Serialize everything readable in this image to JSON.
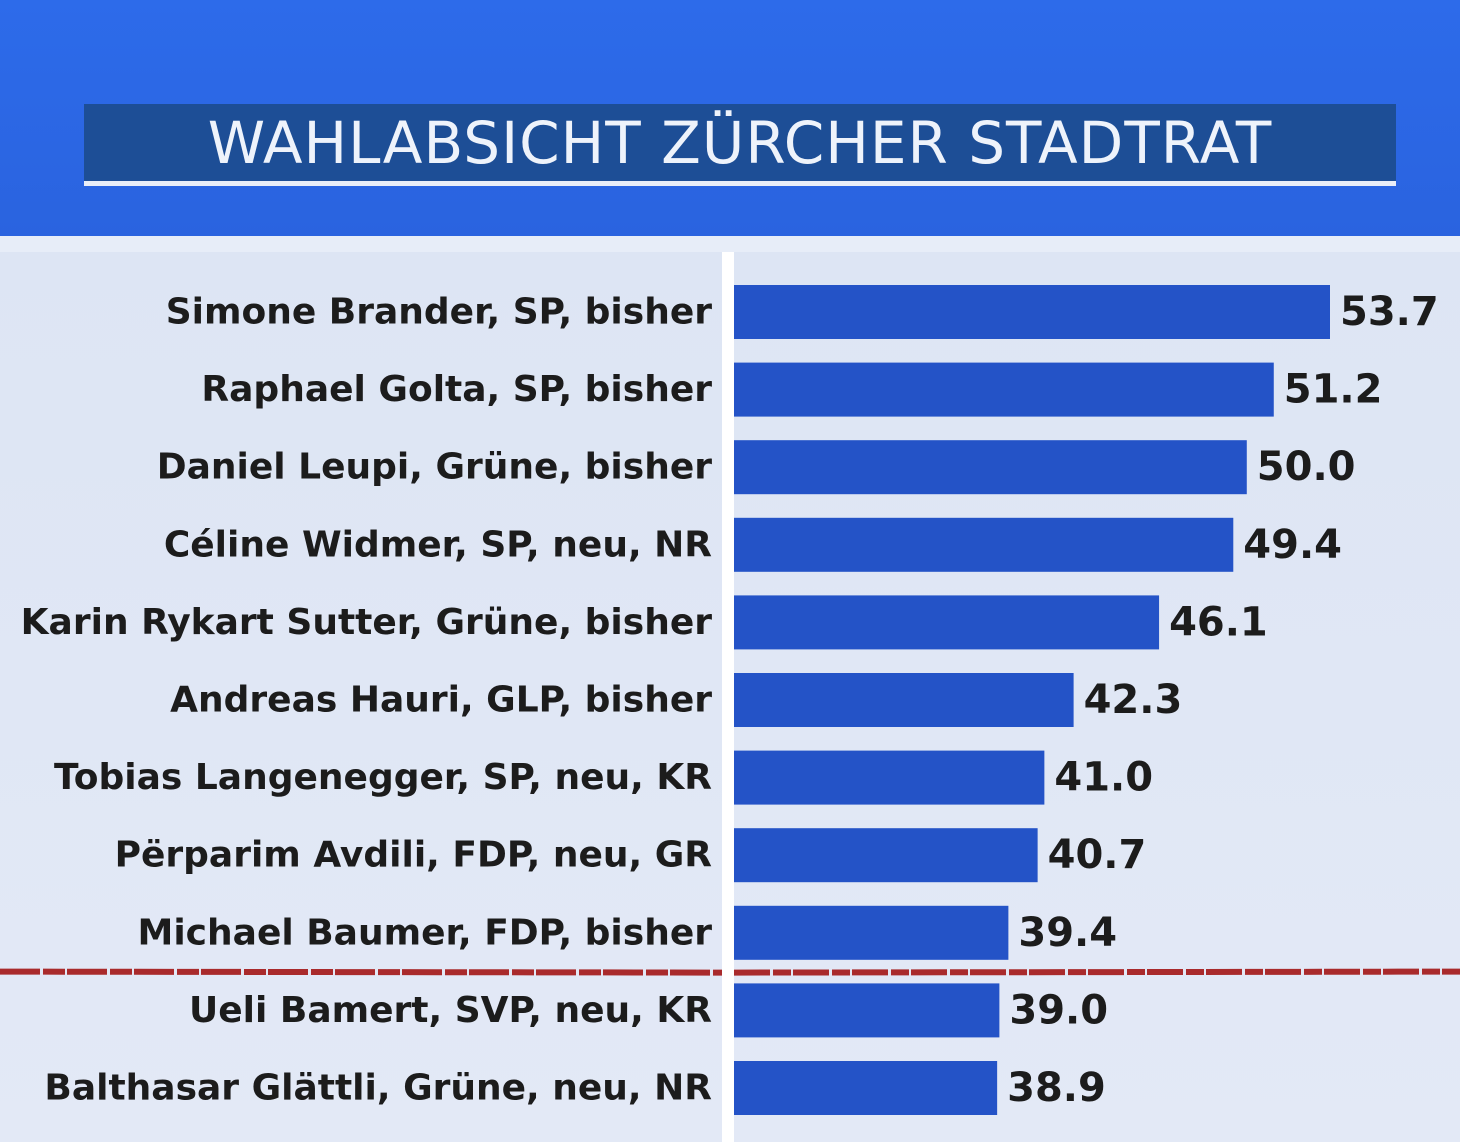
{
  "chart_data": {
    "type": "bar",
    "orientation": "horizontal",
    "title": "WAHLABSICHT ZÜRCHER STADTRAT",
    "categories": [
      "Simone Brander, SP, bisher",
      "Raphael Golta, SP, bisher",
      "Daniel Leupi, Grüne, bisher",
      "Céline Widmer, SP, neu, NR",
      "Karin Rykart Sutter, Grüne, bisher",
      "Andreas Hauri, GLP, bisher",
      "Tobias Langenegger, SP, neu, KR",
      "Përparim Avdili, FDP, neu, GR",
      "Michael Baumer, FDP, bisher",
      "Ueli Bamert, SVP, neu, KR",
      "Balthasar Glättli, Grüne, neu, NR"
    ],
    "values": [
      53.7,
      51.2,
      50.0,
      49.4,
      46.1,
      42.3,
      41.0,
      40.7,
      39.4,
      39.0,
      38.9
    ],
    "value_labels": [
      "53.7",
      "51.2",
      "50.0",
      "49.4",
      "46.1",
      "42.3",
      "41.0",
      "40.7",
      "39.4",
      "39.0",
      "38.9"
    ],
    "xlim": [
      27.2,
      56
    ],
    "cutoff_after_index": 8,
    "grid": false,
    "legend": "none",
    "colors": {
      "bar": "#2453c7",
      "header": "#2d6bea",
      "title_box": "#1d4e96",
      "cutoff_line": "#a92a2c",
      "label": "#1c1c1c"
    }
  }
}
